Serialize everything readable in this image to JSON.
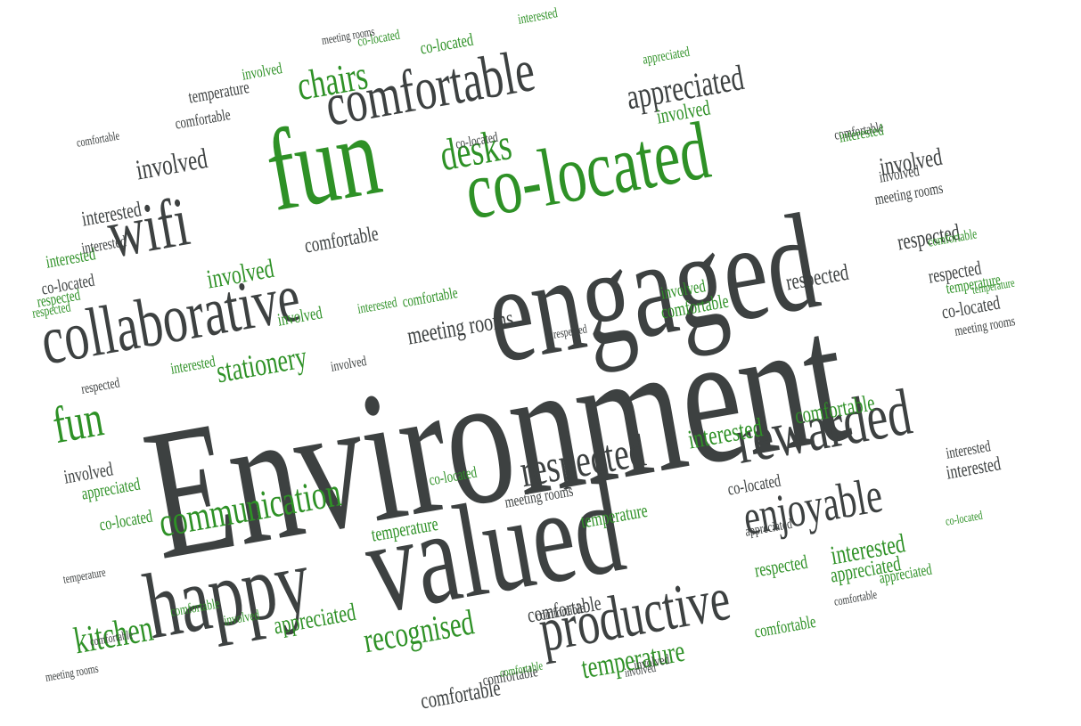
{
  "colors": {
    "dark": "#3d4141",
    "green": "#2e9126",
    "background": "#ffffff"
  },
  "words": [
    {
      "text": "Environment",
      "color": "dark"
    },
    {
      "text": "engaged",
      "color": "dark"
    },
    {
      "text": "valued",
      "color": "dark"
    },
    {
      "text": "fun",
      "color": "green"
    },
    {
      "text": "happy",
      "color": "dark"
    },
    {
      "text": "co-located",
      "color": "green"
    },
    {
      "text": "collaborative",
      "color": "dark"
    },
    {
      "text": "comfortable",
      "color": "dark"
    },
    {
      "text": "wifi",
      "color": "dark"
    },
    {
      "text": "rewarded",
      "color": "dark"
    },
    {
      "text": "productive",
      "color": "dark"
    },
    {
      "text": "enjoyable",
      "color": "dark"
    },
    {
      "text": "respected",
      "color": "dark"
    },
    {
      "text": "communication",
      "color": "green"
    },
    {
      "text": "desks",
      "color": "green"
    },
    {
      "text": "chairs",
      "color": "green"
    },
    {
      "text": "appreciated",
      "color": "dark"
    },
    {
      "text": "fun",
      "color": "green"
    },
    {
      "text": "kitchen",
      "color": "green"
    },
    {
      "text": "recognised",
      "color": "green"
    },
    {
      "text": "stationery",
      "color": "green"
    },
    {
      "text": "meeting rooms",
      "color": "dark"
    },
    {
      "text": "temperature",
      "color": "green"
    },
    {
      "text": "interested",
      "color": "green"
    },
    {
      "text": "interested",
      "color": "green"
    },
    {
      "text": "involved",
      "color": "dark"
    },
    {
      "text": "involved",
      "color": "dark"
    },
    {
      "text": "interested",
      "color": "dark"
    },
    {
      "text": "comfortable",
      "color": "green"
    },
    {
      "text": "interested",
      "color": "dark"
    },
    {
      "text": "co-located",
      "color": "dark"
    },
    {
      "text": "respected",
      "color": "dark"
    },
    {
      "text": "respected",
      "color": "dark"
    },
    {
      "text": "respected",
      "color": "dark"
    },
    {
      "text": "involved",
      "color": "green"
    },
    {
      "text": "involved",
      "color": "green"
    },
    {
      "text": "appreciated",
      "color": "green"
    },
    {
      "text": "appreciated",
      "color": "green"
    },
    {
      "text": "comfortable",
      "color": "dark"
    },
    {
      "text": "comfortable",
      "color": "dark"
    },
    {
      "text": "comfortable",
      "color": "dark"
    },
    {
      "text": "temperature",
      "color": "dark"
    },
    {
      "text": "temperature",
      "color": "green"
    },
    {
      "text": "respected",
      "color": "green"
    },
    {
      "text": "interested",
      "color": "green"
    },
    {
      "text": "co-located",
      "color": "dark"
    },
    {
      "text": "involved",
      "color": "dark"
    },
    {
      "text": "interested",
      "color": "dark"
    },
    {
      "text": "co-located",
      "color": "dark"
    },
    {
      "text": "involved",
      "color": "green"
    },
    {
      "text": "appreciated",
      "color": "green"
    },
    {
      "text": "co-located",
      "color": "green"
    },
    {
      "text": "comfortable",
      "color": "green"
    },
    {
      "text": "comfortable",
      "color": "green"
    },
    {
      "text": "meeting rooms",
      "color": "dark"
    },
    {
      "text": "co-located",
      "color": "green"
    },
    {
      "text": "interested",
      "color": "dark"
    },
    {
      "text": "appreciated",
      "color": "dark"
    },
    {
      "text": "involved",
      "color": "dark"
    },
    {
      "text": "co-located",
      "color": "dark"
    },
    {
      "text": "meeting rooms",
      "color": "dark"
    },
    {
      "text": "comfortable",
      "color": "dark"
    },
    {
      "text": "temperature",
      "color": "green"
    },
    {
      "text": "respected",
      "color": "green"
    },
    {
      "text": "comfortable",
      "color": "green"
    },
    {
      "text": "involved",
      "color": "green"
    },
    {
      "text": "temperature",
      "color": "green"
    },
    {
      "text": "interested",
      "color": "green"
    },
    {
      "text": "co-located",
      "color": "green"
    },
    {
      "text": "appreciated",
      "color": "green"
    },
    {
      "text": "comfortable",
      "color": "dark"
    },
    {
      "text": "meeting rooms",
      "color": "dark"
    },
    {
      "text": "comfortable",
      "color": "dark"
    },
    {
      "text": "involved",
      "color": "dark"
    },
    {
      "text": "temperature",
      "color": "dark"
    },
    {
      "text": "respected",
      "color": "green"
    },
    {
      "text": "co-located",
      "color": "green"
    },
    {
      "text": "comfortable",
      "color": "green"
    },
    {
      "text": "involved",
      "color": "green"
    },
    {
      "text": "interested",
      "color": "green"
    },
    {
      "text": "meeting rooms",
      "color": "dark"
    },
    {
      "text": "interested",
      "color": "green"
    },
    {
      "text": "involved",
      "color": "dark"
    },
    {
      "text": "comfortable",
      "color": "dark"
    },
    {
      "text": "comfortable",
      "color": "dark"
    },
    {
      "text": "co-located",
      "color": "green"
    },
    {
      "text": "interested",
      "color": "green"
    },
    {
      "text": "comfortable",
      "color": "green"
    },
    {
      "text": "appreciated",
      "color": "green"
    },
    {
      "text": "respected",
      "color": "dark"
    },
    {
      "text": "involved",
      "color": "dark"
    },
    {
      "text": "comfortable",
      "color": "dark"
    },
    {
      "text": "meeting rooms",
      "color": "dark"
    },
    {
      "text": "respected",
      "color": "dark"
    },
    {
      "text": "temperature",
      "color": "green"
    },
    {
      "text": "comfortable",
      "color": "dark"
    },
    {
      "text": "involved",
      "color": "green"
    },
    {
      "text": "comfortable",
      "color": "green"
    }
  ]
}
